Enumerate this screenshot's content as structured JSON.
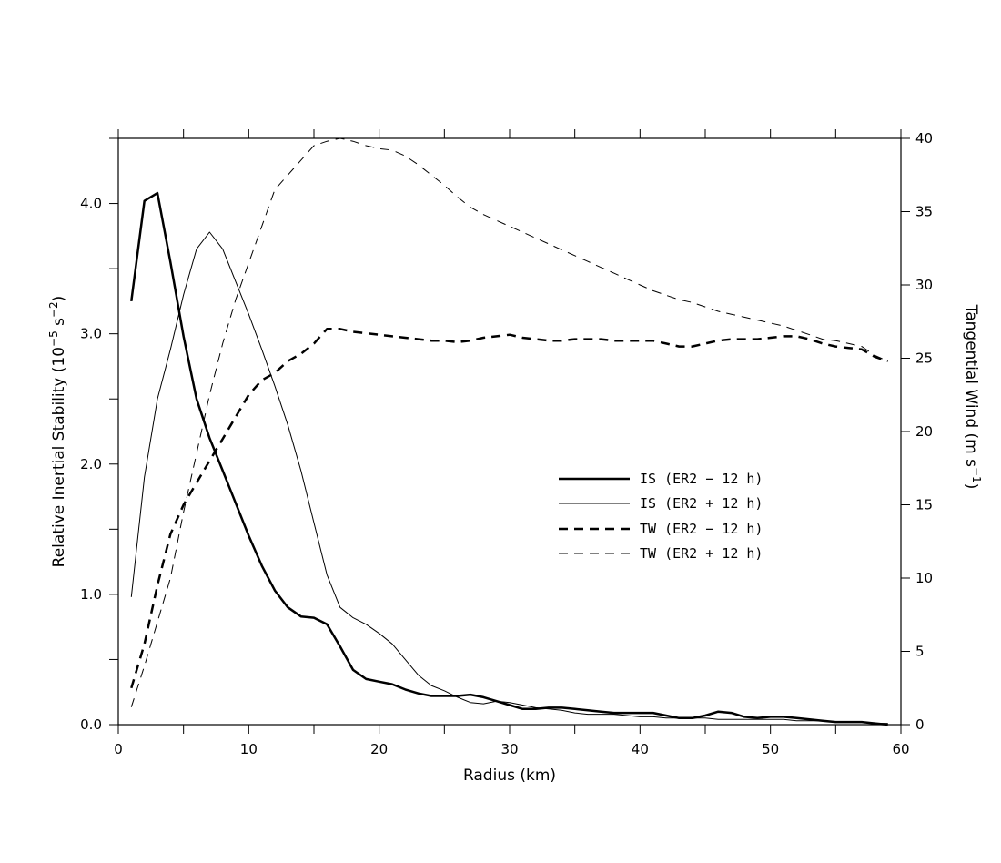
{
  "chart_data": {
    "type": "line",
    "xlabel": "Radius (km)",
    "ylabel_left": {
      "main": "Relative Inertial Stability (10",
      "sup1": "−5",
      "mid": " s",
      "sup2": "−2",
      "end": ")"
    },
    "ylabel_right": {
      "main": "Tangential Wind (m s",
      "sup": "−1",
      "end": ")"
    },
    "xlim": [
      0,
      60
    ],
    "ylim_left": [
      0,
      4.5
    ],
    "ylim_right": [
      0,
      40
    ],
    "x_ticks": [
      0,
      10,
      20,
      30,
      40,
      50,
      60
    ],
    "y_left_ticks": [
      "0.0",
      "1.0",
      "2.0",
      "3.0",
      "4.0"
    ],
    "y_right_ticks": [
      0,
      5,
      10,
      15,
      20,
      25,
      30,
      35,
      40
    ],
    "grid": false,
    "legend_position": "center-right",
    "series": [
      {
        "name": "IS (ER2 − 12 h)",
        "axis": "left",
        "style": "solid-thick",
        "x": [
          1,
          2,
          3,
          4,
          5,
          6,
          7,
          8,
          9,
          10,
          11,
          12,
          13,
          14,
          15,
          16,
          17,
          18,
          19,
          20,
          21,
          22,
          23,
          24,
          25,
          26,
          27,
          28,
          29,
          30,
          31,
          32,
          33,
          34,
          35,
          36,
          37,
          38,
          39,
          40,
          41,
          42,
          43,
          44,
          45,
          46,
          47,
          48,
          49,
          50,
          51,
          52,
          53,
          54,
          55,
          56,
          57,
          58,
          59
        ],
        "values": [
          3.25,
          4.02,
          4.08,
          3.55,
          2.98,
          2.5,
          2.2,
          1.95,
          1.7,
          1.45,
          1.22,
          1.03,
          0.9,
          0.83,
          0.82,
          0.77,
          0.6,
          0.42,
          0.35,
          0.33,
          0.31,
          0.27,
          0.24,
          0.22,
          0.22,
          0.22,
          0.23,
          0.21,
          0.18,
          0.15,
          0.12,
          0.12,
          0.13,
          0.13,
          0.12,
          0.11,
          0.1,
          0.09,
          0.09,
          0.09,
          0.09,
          0.07,
          0.05,
          0.05,
          0.07,
          0.1,
          0.09,
          0.06,
          0.05,
          0.06,
          0.06,
          0.05,
          0.04,
          0.03,
          0.02,
          0.02,
          0.02,
          0.01,
          0.0
        ]
      },
      {
        "name": "IS (ER2 + 12 h)",
        "axis": "left",
        "style": "solid-thin",
        "x": [
          1,
          2,
          3,
          4,
          5,
          6,
          7,
          8,
          9,
          10,
          11,
          12,
          13,
          14,
          15,
          16,
          17,
          18,
          19,
          20,
          21,
          22,
          23,
          24,
          25,
          26,
          27,
          28,
          29,
          30,
          31,
          32,
          33,
          34,
          35,
          36,
          37,
          38,
          39,
          40,
          41,
          42,
          43,
          44,
          45,
          46,
          47,
          48,
          49,
          50,
          51,
          52,
          53,
          54,
          55,
          56,
          57,
          58,
          59
        ],
        "values": [
          0.98,
          1.9,
          2.5,
          2.88,
          3.3,
          3.65,
          3.78,
          3.65,
          3.4,
          3.15,
          2.88,
          2.6,
          2.3,
          1.95,
          1.55,
          1.15,
          0.9,
          0.82,
          0.77,
          0.7,
          0.62,
          0.5,
          0.38,
          0.3,
          0.26,
          0.21,
          0.17,
          0.16,
          0.18,
          0.17,
          0.15,
          0.13,
          0.12,
          0.11,
          0.09,
          0.08,
          0.08,
          0.08,
          0.07,
          0.06,
          0.06,
          0.05,
          0.05,
          0.05,
          0.05,
          0.04,
          0.04,
          0.04,
          0.04,
          0.04,
          0.04,
          0.03,
          0.03,
          0.03,
          0.02,
          0.02,
          0.02,
          0.01,
          0.01
        ]
      },
      {
        "name": "TW (ER2 − 12 h)",
        "axis": "right",
        "style": "dashed-thick",
        "x": [
          1,
          2,
          3,
          4,
          5,
          6,
          7,
          8,
          9,
          10,
          11,
          12,
          13,
          14,
          15,
          16,
          17,
          18,
          19,
          20,
          21,
          22,
          23,
          24,
          25,
          26,
          27,
          28,
          29,
          30,
          31,
          32,
          33,
          34,
          35,
          36,
          37,
          38,
          39,
          40,
          41,
          42,
          43,
          44,
          45,
          46,
          47,
          48,
          49,
          50,
          51,
          52,
          53,
          54,
          55,
          56,
          57,
          58,
          59
        ],
        "values": [
          2.5,
          5.5,
          9.5,
          13.0,
          15.0,
          16.5,
          18.0,
          19.5,
          21.0,
          22.5,
          23.5,
          24.0,
          24.8,
          25.3,
          26.0,
          27.0,
          27.0,
          26.8,
          26.7,
          26.6,
          26.5,
          26.4,
          26.3,
          26.2,
          26.2,
          26.1,
          26.2,
          26.4,
          26.5,
          26.6,
          26.4,
          26.3,
          26.2,
          26.2,
          26.3,
          26.3,
          26.3,
          26.2,
          26.2,
          26.2,
          26.2,
          26.0,
          25.8,
          25.8,
          26.0,
          26.2,
          26.3,
          26.3,
          26.3,
          26.4,
          26.5,
          26.5,
          26.3,
          26.0,
          25.8,
          25.7,
          25.6,
          25.1,
          24.8
        ]
      },
      {
        "name": "TW (ER2 + 12 h)",
        "axis": "right",
        "style": "dashed-thin",
        "x": [
          1,
          2,
          3,
          4,
          5,
          6,
          7,
          8,
          9,
          10,
          11,
          12,
          13,
          14,
          15,
          16,
          17,
          18,
          19,
          20,
          21,
          22,
          23,
          24,
          25,
          26,
          27,
          28,
          29,
          30,
          31,
          32,
          33,
          34,
          35,
          36,
          37,
          38,
          39,
          40,
          41,
          42,
          43,
          44,
          45,
          46,
          47,
          48,
          49,
          50,
          51,
          52,
          53,
          54,
          55,
          56,
          57,
          58,
          59
        ],
        "values": [
          1.2,
          4.0,
          7.0,
          10.0,
          14.5,
          18.5,
          22.5,
          26.0,
          29.0,
          31.5,
          34.0,
          36.5,
          37.5,
          38.5,
          39.5,
          39.8,
          40.0,
          39.8,
          39.5,
          39.3,
          39.2,
          38.8,
          38.2,
          37.5,
          36.8,
          36.0,
          35.3,
          34.8,
          34.4,
          34.0,
          33.6,
          33.2,
          32.8,
          32.4,
          32.0,
          31.6,
          31.2,
          30.8,
          30.4,
          30.0,
          29.6,
          29.3,
          29.0,
          28.8,
          28.5,
          28.2,
          28.0,
          27.8,
          27.6,
          27.4,
          27.2,
          26.9,
          26.6,
          26.3,
          26.2,
          26.0,
          25.8,
          25.2,
          24.8
        ]
      }
    ]
  }
}
